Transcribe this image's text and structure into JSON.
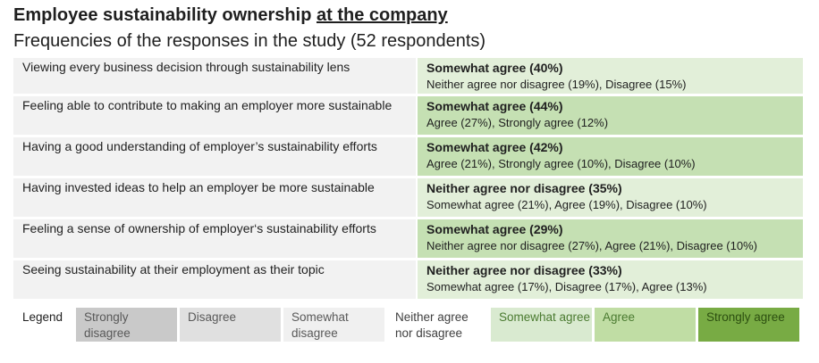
{
  "title": {
    "main": "Employee sustainability ownership ",
    "underlined": "at the company"
  },
  "subtitle": "Frequencies of the responses in the study (52 respondents)",
  "rows": [
    {
      "question": "Viewing every business decision through sustainability lens",
      "top": "Somewhat agree (40%)",
      "rest": "Neither agree nor disagree (19%), Disagree (15%)",
      "color": "#e2efd9"
    },
    {
      "question": "Feeling able to contribute to making an employer more sustainable",
      "top": "Somewhat agree (44%)",
      "rest": "Agree (27%), Strongly agree (12%)",
      "color": "#c5e0b3"
    },
    {
      "question": "Having a good understanding of employer’s sustainability efforts",
      "top": "Somewhat agree (42%)",
      "rest": "Agree (21%), Strongly agree (10%), Disagree (10%)",
      "color": "#c5e0b3"
    },
    {
      "question": "Having invested ideas to help an employer be more sustainable",
      "top": "Neither agree nor disagree (35%)",
      "rest": "Somewhat agree (21%), Agree (19%), Disagree (10%)",
      "color": "#e2efd9"
    },
    {
      "question": "Feeling a sense of ownership of employer‘s sustainability efforts",
      "top": "Somewhat agree (29%)",
      "rest": "Neither agree nor disagree (27%), Agree (21%), Disagree (10%)",
      "color": "#c5e0b3"
    },
    {
      "question": "Seeing sustainability at their employment as their topic",
      "top": "Neither agree nor disagree (33%)",
      "rest": "Somewhat agree (17%), Disagree (17%), Agree (13%)",
      "color": "#e2efd9"
    }
  ],
  "legend": {
    "label": "Legend",
    "items": [
      {
        "label": "Strongly disagree",
        "color": "#c9c9c9",
        "text_color": "#595959"
      },
      {
        "label": "Disagree",
        "color": "#e0e0e0",
        "text_color": "#595959"
      },
      {
        "label": "Somewhat disagree",
        "color": "#f0f0f0",
        "text_color": "#595959"
      },
      {
        "label": "Neither agree nor disagree",
        "color": "#ffffff",
        "text_color": "#404040"
      },
      {
        "label": "Somewhat agree",
        "color": "#d9ead0",
        "text_color": "#4a7a30"
      },
      {
        "label": "Agree",
        "color": "#c0dda4",
        "text_color": "#4a7a30"
      },
      {
        "label": "Strongly agree",
        "color": "#78ab44",
        "text_color": "#2c4f10"
      }
    ]
  }
}
